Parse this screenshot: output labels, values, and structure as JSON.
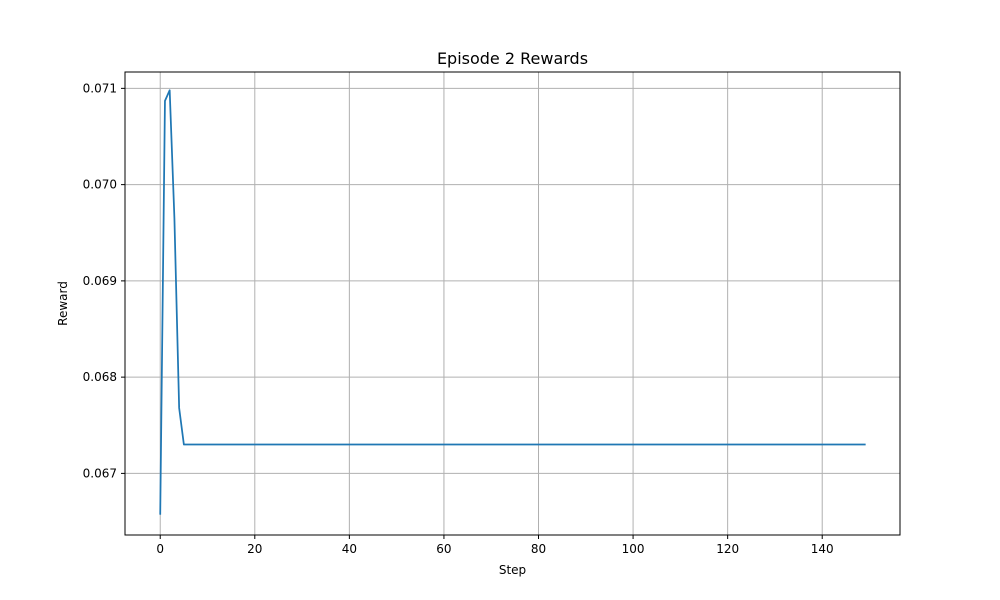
{
  "chart_data": {
    "type": "line",
    "title": "Episode 2 Rewards",
    "xlabel": "Step",
    "ylabel": "Reward",
    "xlim": [
      -7.45,
      156.45
    ],
    "ylim": [
      0.06636,
      0.07117
    ],
    "grid": true,
    "xticks": [
      0,
      20,
      40,
      60,
      80,
      100,
      120,
      140
    ],
    "xtick_labels": [
      "0",
      "20",
      "40",
      "60",
      "80",
      "100",
      "120",
      "140"
    ],
    "yticks": [
      0.067,
      0.068,
      0.069,
      0.07,
      0.071
    ],
    "ytick_labels": [
      "0.067",
      "0.068",
      "0.069",
      "0.070",
      "0.071"
    ],
    "series": [
      {
        "color": "#1f77b4",
        "x": [
          0,
          1,
          2,
          3,
          4,
          5,
          10,
          20,
          40,
          60,
          80,
          100,
          120,
          140,
          149
        ],
        "y": [
          0.06658,
          0.07087,
          0.07098,
          0.06965,
          0.06768,
          0.0673,
          0.0673,
          0.0673,
          0.0673,
          0.0673,
          0.0673,
          0.0673,
          0.0673,
          0.0673,
          0.0673
        ]
      }
    ]
  }
}
